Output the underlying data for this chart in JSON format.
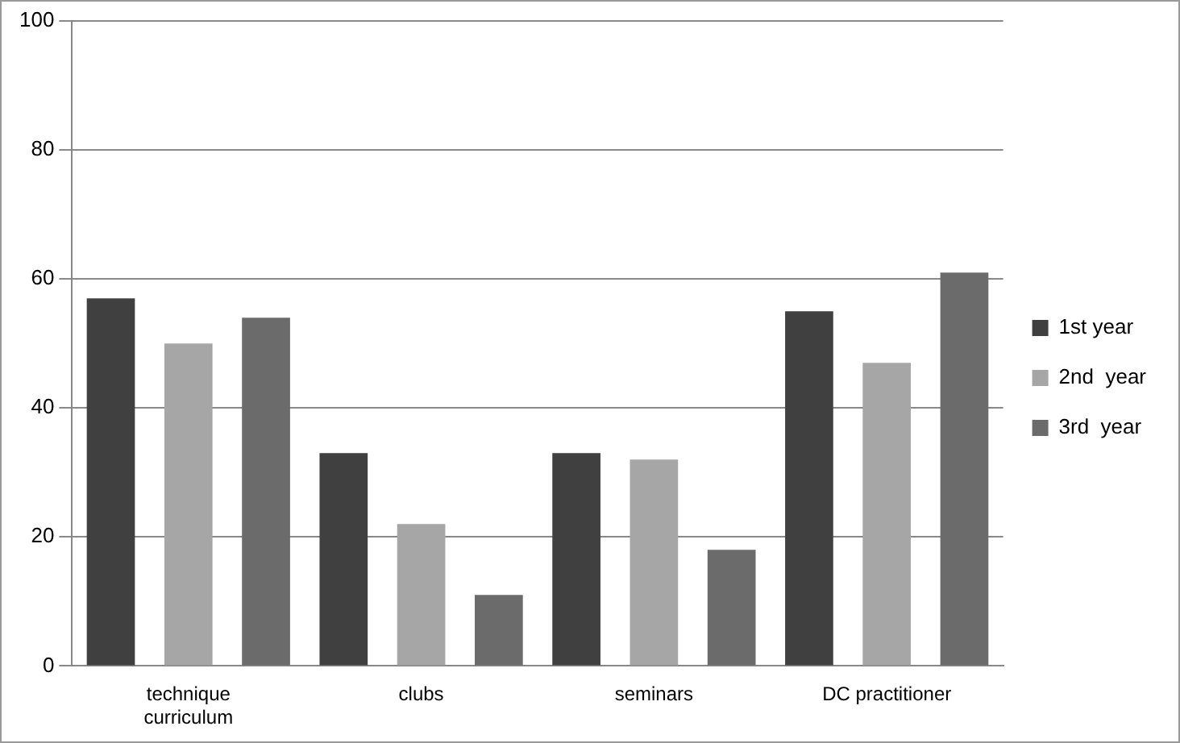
{
  "chart_data": {
    "type": "bar",
    "categories": [
      "technique curriculum",
      "clubs",
      "seminars",
      "DC practitioner"
    ],
    "series": [
      {
        "name": "1st year",
        "color": "#404040",
        "values": [
          57,
          33,
          33,
          55
        ]
      },
      {
        "name": "2nd  year",
        "color": "#a6a6a6",
        "values": [
          50,
          22,
          32,
          47
        ]
      },
      {
        "name": "3rd  year",
        "color": "#6b6b6b",
        "values": [
          54,
          11,
          18,
          61
        ]
      }
    ],
    "ylim": [
      0,
      100
    ],
    "yticks": [
      0,
      20,
      40,
      60,
      80,
      100
    ],
    "grid": "y",
    "legend": "right"
  }
}
